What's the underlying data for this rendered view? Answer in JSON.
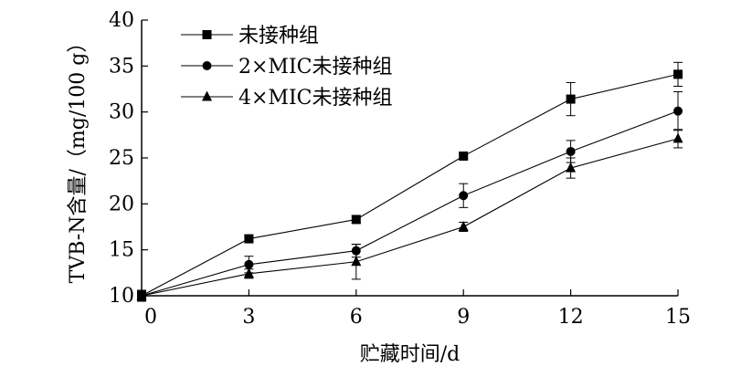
{
  "chart_data": {
    "type": "line",
    "title": "",
    "xlabel": "贮藏时间/d",
    "ylabel": "TVB-N含量/（mg/100 g）",
    "x": [
      0,
      3,
      6,
      9,
      12,
      15
    ],
    "xticks": [
      "0",
      "3",
      "6",
      "9",
      "12",
      "15"
    ],
    "yticks": [
      "10",
      "15",
      "20",
      "25",
      "30",
      "35",
      "40"
    ],
    "xlim": [
      0,
      15
    ],
    "ylim": [
      10,
      40
    ],
    "grid": false,
    "legend_position": "top-left",
    "series": [
      {
        "name": "未接种组",
        "marker": "square",
        "values": [
          10.0,
          16.2,
          18.3,
          25.2,
          31.4,
          34.1
        ],
        "errors": [
          0.6,
          0.3,
          0.4,
          0.3,
          1.8,
          1.3
        ]
      },
      {
        "name": "2×MIC未接种组",
        "marker": "circle",
        "values": [
          10.0,
          13.4,
          14.9,
          20.9,
          25.7,
          30.1
        ],
        "errors": [
          0.5,
          0.9,
          0.7,
          1.3,
          1.2,
          2.1
        ]
      },
      {
        "name": "4×MIC未接种组",
        "marker": "triangle",
        "values": [
          10.0,
          12.4,
          13.7,
          17.5,
          23.9,
          27.1
        ],
        "errors": [
          0.4,
          0.5,
          1.9,
          0.5,
          1.1,
          1.0
        ]
      }
    ]
  }
}
